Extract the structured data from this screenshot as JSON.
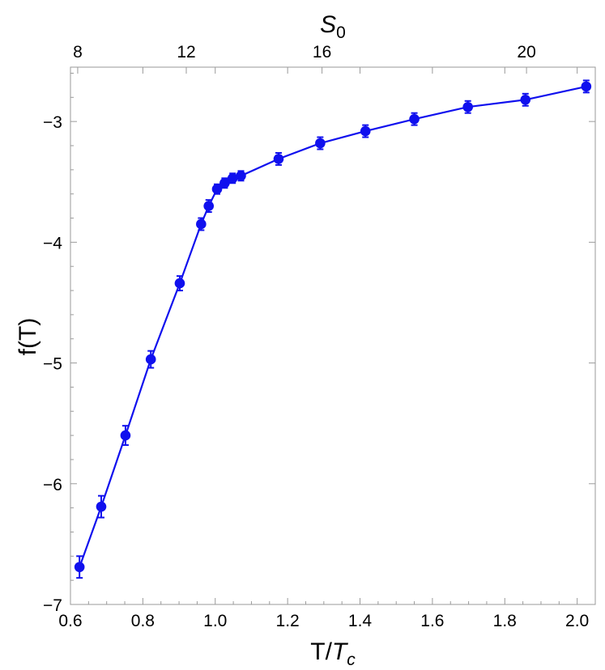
{
  "chart_data": {
    "type": "scatter",
    "xlabel": {
      "main": "T/",
      "var": "T",
      "sub": "c"
    },
    "ylabel": "f(T)",
    "x2label": {
      "var": "S",
      "sub": "0"
    },
    "xlim": [
      0.6,
      2.05
    ],
    "ylim": [
      -7,
      -2.55
    ],
    "x_ticks": [
      "0.6",
      "0.8",
      "1.0",
      "1.2",
      "1.4",
      "1.6",
      "1.8",
      "2.0"
    ],
    "y_ticks": [
      "-3",
      "-4",
      "-5",
      "-6",
      "-7"
    ],
    "x2_ticks": [
      {
        "label": "8",
        "x": 0.62
      },
      {
        "label": "12",
        "x": 0.92
      },
      {
        "label": "16",
        "x": 1.295
      },
      {
        "label": "20",
        "x": 1.86
      }
    ],
    "grid": false,
    "series": [
      {
        "color": "#1010ee",
        "connected": true,
        "points": [
          {
            "x": 0.625,
            "y": -6.69,
            "err": 0.09
          },
          {
            "x": 0.685,
            "y": -6.19,
            "err": 0.09
          },
          {
            "x": 0.752,
            "y": -5.6,
            "err": 0.08
          },
          {
            "x": 0.822,
            "y": -4.97,
            "err": 0.07
          },
          {
            "x": 0.902,
            "y": -4.34,
            "err": 0.06
          },
          {
            "x": 0.961,
            "y": -3.85,
            "err": 0.05
          },
          {
            "x": 0.982,
            "y": -3.7,
            "err": 0.05
          },
          {
            "x": 1.005,
            "y": -3.56,
            "err": 0.04
          },
          {
            "x": 1.026,
            "y": -3.51,
            "err": 0.04
          },
          {
            "x": 1.048,
            "y": -3.47,
            "err": 0.04
          },
          {
            "x": 1.071,
            "y": -3.45,
            "err": 0.04
          },
          {
            "x": 1.175,
            "y": -3.31,
            "err": 0.05
          },
          {
            "x": 1.29,
            "y": -3.18,
            "err": 0.05
          },
          {
            "x": 1.415,
            "y": -3.08,
            "err": 0.05
          },
          {
            "x": 1.55,
            "y": -2.98,
            "err": 0.05
          },
          {
            "x": 1.698,
            "y": -2.88,
            "err": 0.05
          },
          {
            "x": 1.857,
            "y": -2.82,
            "err": 0.05
          },
          {
            "x": 2.025,
            "y": -2.71,
            "err": 0.05
          }
        ]
      }
    ]
  }
}
